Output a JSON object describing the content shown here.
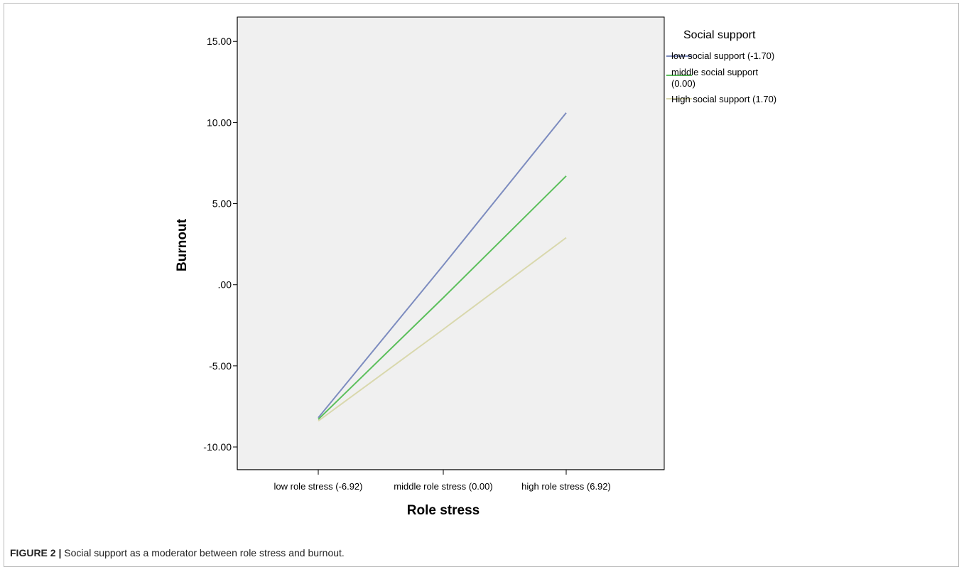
{
  "chart_data": {
    "type": "line",
    "title": "",
    "xlabel": "Role stress",
    "ylabel": "Burnout",
    "categories": [
      "low role stress (-6.92)",
      "middle role stress (0.00)",
      "high role stress (6.92)"
    ],
    "ylim": [
      -11.4,
      16.5
    ],
    "yticks": [
      15,
      10,
      5,
      0,
      -5,
      -10
    ],
    "ytick_labels": [
      "15.00",
      "10.00",
      "5.00",
      ".00",
      "-5.00",
      "-10.00"
    ],
    "grid": false,
    "legend_title": "Social support",
    "legend_position": "top-right outside",
    "series": [
      {
        "name": "low social support (-1.70)",
        "color": "#7d8cbf",
        "values": [
          -8.2,
          1.2,
          10.6
        ]
      },
      {
        "name": "middle social support (0.00)",
        "color": "#5bbf5b",
        "values": [
          -8.3,
          -0.8,
          6.7
        ]
      },
      {
        "name": "High social support (1.70)",
        "color": "#d9d8ad",
        "values": [
          -8.4,
          -2.75,
          2.9
        ]
      }
    ]
  },
  "caption": {
    "label": "FIGURE 2 |",
    "text": " Social support as a moderator between role stress and burnout."
  }
}
